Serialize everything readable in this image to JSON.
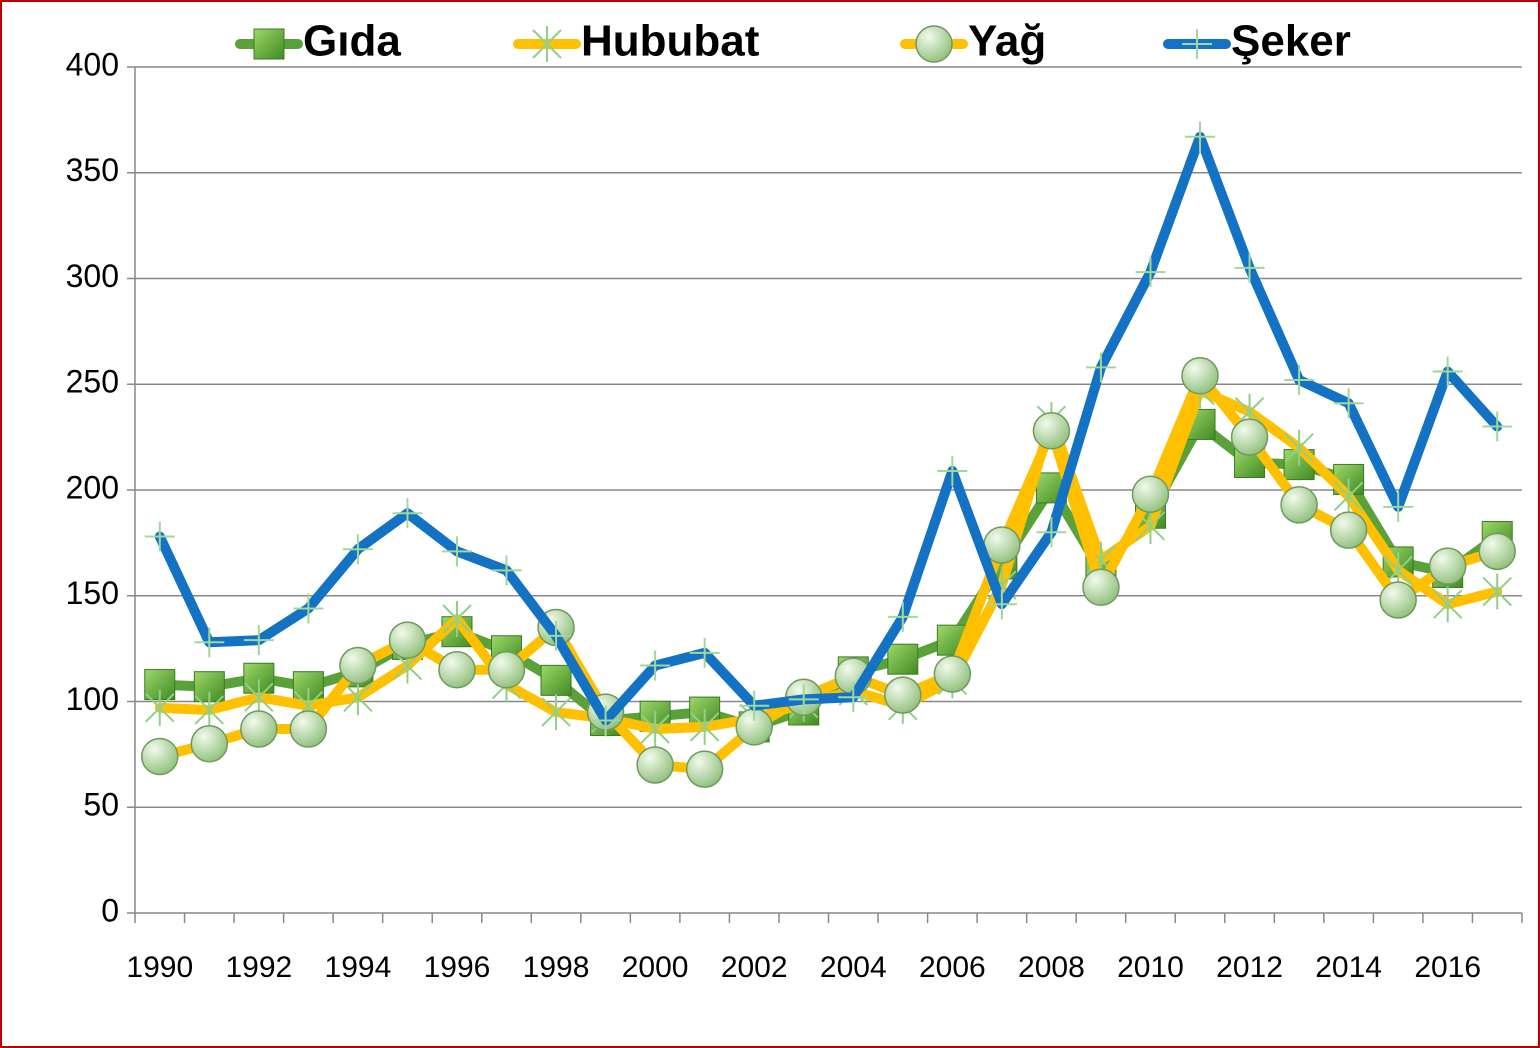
{
  "chart_data": {
    "type": "line",
    "categories": [
      "1990",
      null,
      "1992",
      null,
      "1994",
      null,
      "1996",
      null,
      "1998",
      null,
      "2000",
      null,
      "2002",
      null,
      "2004",
      null,
      "2006",
      null,
      "2008",
      null,
      "2010",
      null,
      "2012",
      null,
      "2014",
      null,
      "2016",
      null
    ],
    "series": [
      {
        "name": "Gıda",
        "color": "#5aa13a",
        "values": [
          108,
          107,
          111,
          107,
          114,
          127,
          133,
          124,
          110,
          91,
          93,
          95,
          88,
          96,
          114,
          120,
          129,
          165,
          201,
          162,
          189,
          231,
          213,
          212,
          205,
          166,
          161,
          178
        ]
      },
      {
        "name": "Hububat",
        "color": "#ffc000",
        "values": [
          97,
          96,
          102,
          98,
          102,
          117,
          139,
          108,
          95,
          92,
          87,
          88,
          92,
          99,
          105,
          98,
          110,
          155,
          233,
          167,
          183,
          247,
          237,
          220,
          197,
          162,
          146,
          152
        ]
      },
      {
        "name": "Yağ",
        "color": "#ffc000",
        "values": [
          74,
          80,
          87,
          87,
          117,
          129,
          115,
          115,
          135,
          95,
          70,
          68,
          88,
          102,
          112,
          103,
          113,
          174,
          228,
          154,
          198,
          254,
          225,
          193,
          181,
          148,
          164,
          171
        ]
      },
      {
        "name": "Şeker",
        "color": "#1372c4",
        "values": [
          178,
          128,
          129,
          144,
          172,
          189,
          171,
          162,
          131,
          91,
          117,
          123,
          98,
          101,
          102,
          140,
          209,
          146,
          180,
          258,
          303,
          367,
          305,
          252,
          241,
          192,
          256,
          230
        ]
      }
    ],
    "ylim": [
      0,
      400
    ],
    "yticks": [
      0,
      50,
      100,
      150,
      200,
      250,
      300,
      350,
      400
    ],
    "grid": true,
    "legend": "top"
  }
}
